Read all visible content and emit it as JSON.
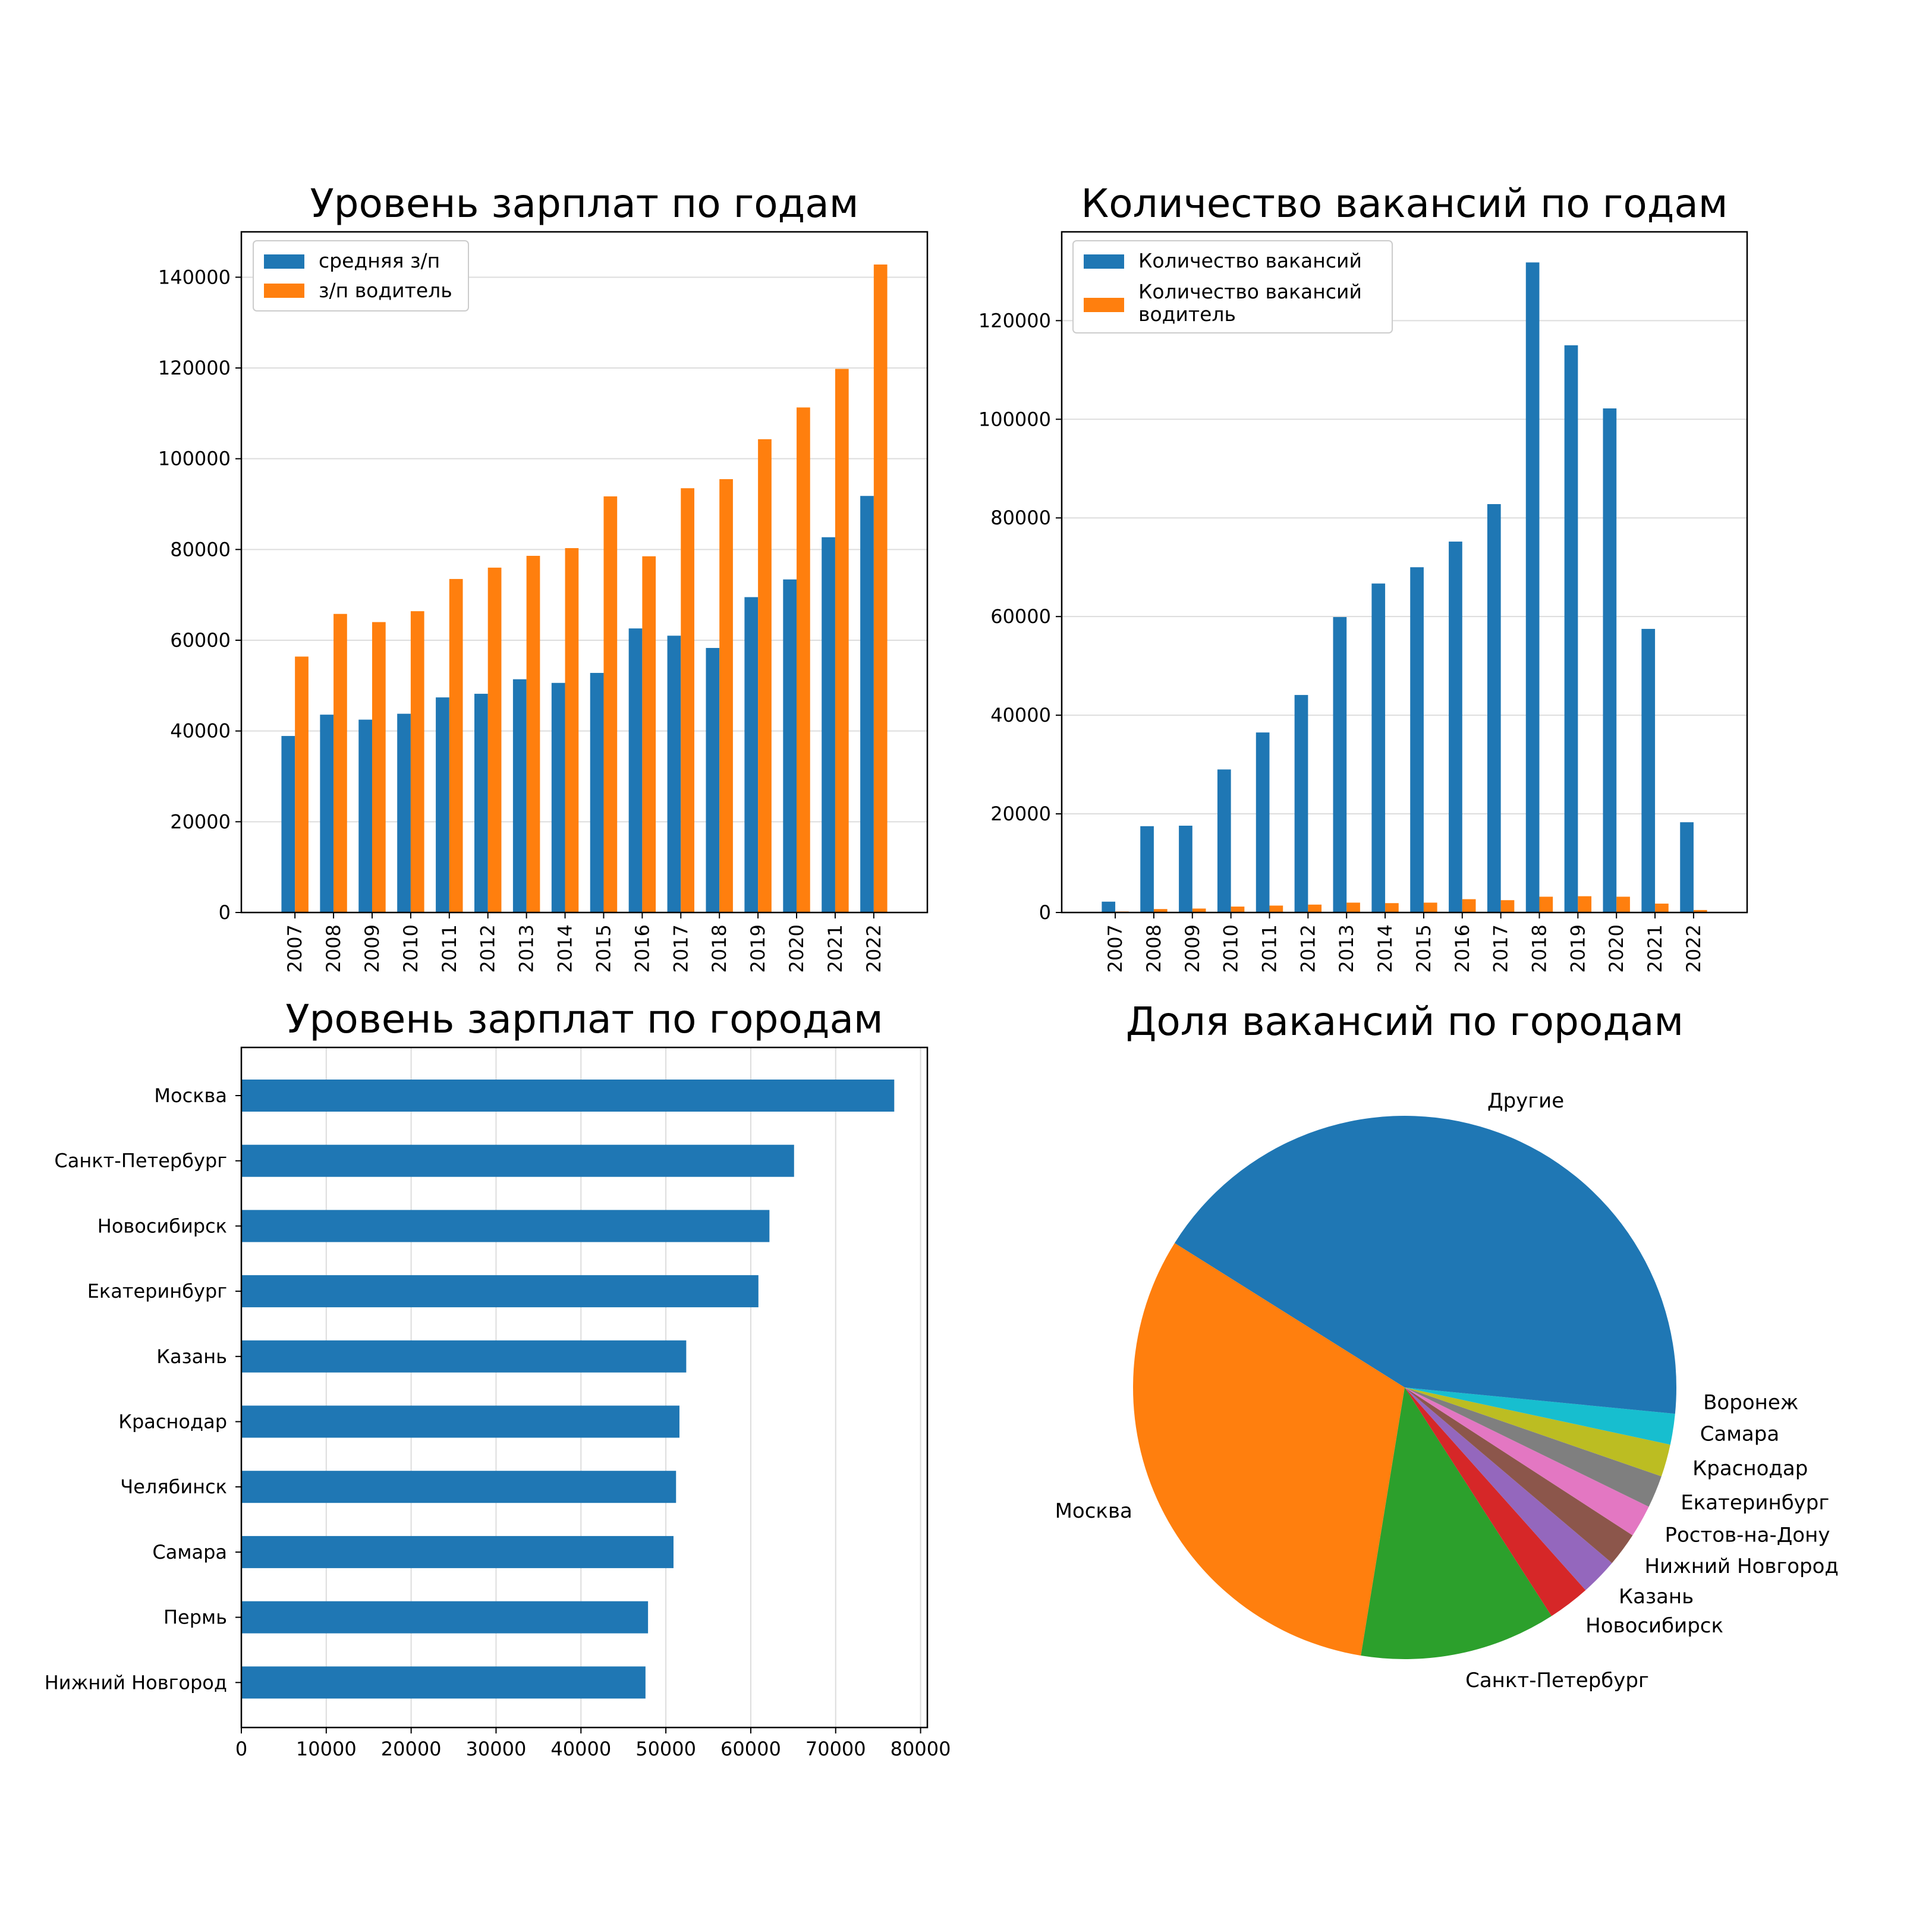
{
  "colors": {
    "blue": "#1f77b4",
    "orange": "#ff7f0e",
    "grid": "#dddddd",
    "pie": [
      "#1f77b4",
      "#ff7f0e",
      "#2ca02c",
      "#d62728",
      "#9467bd",
      "#8c564b",
      "#e377c2",
      "#7f7f7f",
      "#bcbd22",
      "#17becf"
    ]
  },
  "chart_data": [
    {
      "type": "bar",
      "title": "Уровень зарплат по годам",
      "categories": [
        "2007",
        "2008",
        "2009",
        "2010",
        "2011",
        "2012",
        "2013",
        "2014",
        "2015",
        "2016",
        "2017",
        "2018",
        "2019",
        "2020",
        "2021",
        "2022"
      ],
      "series": [
        {
          "name": "средняя з/п",
          "values": [
            38900,
            43600,
            42500,
            43800,
            47400,
            48200,
            51400,
            50600,
            52800,
            62600,
            61000,
            58300,
            69500,
            73400,
            82700,
            91800
          ]
        },
        {
          "name": "з/п водитель",
          "values": [
            56400,
            65800,
            64000,
            66400,
            73500,
            76000,
            78600,
            80300,
            91700,
            78500,
            93500,
            95500,
            104300,
            111300,
            119800,
            142800
          ]
        }
      ],
      "ylim": [
        0,
        150000
      ],
      "yticks": [
        "0",
        "20000",
        "40000",
        "60000",
        "80000",
        "100000",
        "120000",
        "140000"
      ],
      "grid": "y",
      "legend": "upper-left"
    },
    {
      "type": "bar",
      "title": "Количество вакансий по годам",
      "categories": [
        "2007",
        "2008",
        "2009",
        "2010",
        "2011",
        "2012",
        "2013",
        "2014",
        "2015",
        "2016",
        "2017",
        "2018",
        "2019",
        "2020",
        "2021",
        "2022"
      ],
      "series": [
        {
          "name": "Количество вакансий",
          "values": [
            2200,
            17500,
            17600,
            29000,
            36500,
            44100,
            59900,
            66700,
            70000,
            75200,
            82800,
            131800,
            115000,
            102200,
            57500,
            18300
          ]
        },
        {
          "name": "Количество вакансий водитель",
          "values": [
            200,
            700,
            800,
            1200,
            1400,
            1600,
            2000,
            1900,
            2000,
            2700,
            2500,
            3200,
            3300,
            3200,
            1800,
            500
          ]
        }
      ],
      "ylim": [
        0,
        138000
      ],
      "yticks": [
        "0",
        "20000",
        "40000",
        "60000",
        "80000",
        "100000",
        "120000"
      ],
      "grid": "y",
      "legend": "upper-left"
    },
    {
      "type": "bar",
      "orientation": "horizontal",
      "title": "Уровень зарплат по городам",
      "categories": [
        "Москва",
        "Санкт-Петербург",
        "Новосибирск",
        "Екатеринбург",
        "Казань",
        "Краснодар",
        "Челябинск",
        "Самара",
        "Пермь",
        "Нижний Новгород"
      ],
      "values": [
        76900,
        65100,
        62200,
        60900,
        52400,
        51600,
        51200,
        50900,
        47900,
        47600
      ],
      "xlim": [
        0,
        80800
      ],
      "xticks": [
        "0",
        "10000",
        "20000",
        "30000",
        "40000",
        "50000",
        "60000",
        "70000",
        "80000"
      ],
      "grid": "x"
    },
    {
      "type": "pie",
      "title": "Доля вакансий по городам",
      "labels": [
        "Другие",
        "Москва",
        "Санкт-Петербург",
        "Новосибирск",
        "Казань",
        "Нижний Новгород",
        "Ростов-на-Дону",
        "Екатеринбург",
        "Краснодар",
        "Самара",
        "Воронеж"
      ],
      "values": [
        42.6,
        32.5,
        12.1,
        2.6,
        2.3,
        2.1,
        2.0,
        2.0,
        2.0,
        1.9,
        1.6
      ]
    }
  ]
}
